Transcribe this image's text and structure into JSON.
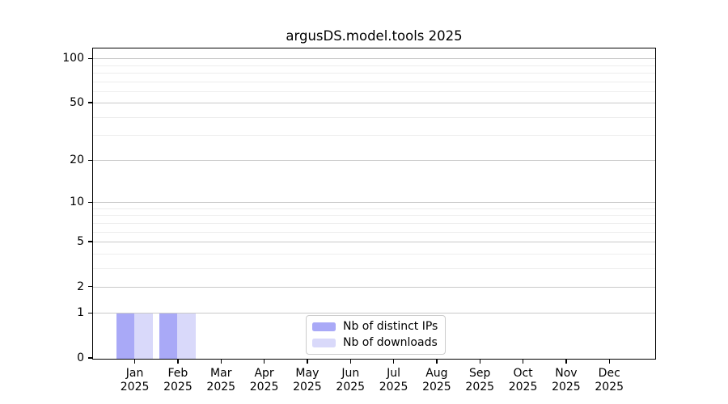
{
  "title": "argusDS.model.tools 2025",
  "chart_data": {
    "type": "bar",
    "title": "argusDS.model.tools 2025",
    "categories": [
      "Jan",
      "Feb",
      "Mar",
      "Apr",
      "May",
      "Jun",
      "Jul",
      "Aug",
      "Sep",
      "Oct",
      "Nov",
      "Dec"
    ],
    "category_year": "2025",
    "series": [
      {
        "name": "Nb of distinct IPs",
        "color": "#a9a9f7",
        "values": [
          1,
          1,
          0,
          0,
          0,
          0,
          0,
          0,
          0,
          0,
          0,
          0
        ]
      },
      {
        "name": "Nb of downloads",
        "color": "#d9d9fa",
        "values": [
          1,
          1,
          0,
          0,
          0,
          0,
          0,
          0,
          0,
          0,
          0,
          0
        ]
      }
    ],
    "yscale": "log1p",
    "ylim": [
      0,
      116.6
    ],
    "yticks_major": [
      0,
      1,
      2,
      5,
      10,
      20,
      50,
      100
    ],
    "yticks_minor": [
      3,
      4,
      6,
      7,
      8,
      9,
      30,
      40,
      60,
      70,
      80,
      90
    ],
    "grid": true,
    "legend_position": "lower center inside",
    "xlabel": "",
    "ylabel": ""
  },
  "colors": {
    "background": "#ffffff",
    "spine": "#000000",
    "text": "#000000",
    "major_grid": "#c9c9c9",
    "minor_grid": "#ededed",
    "legend_border": "#cccccc"
  }
}
